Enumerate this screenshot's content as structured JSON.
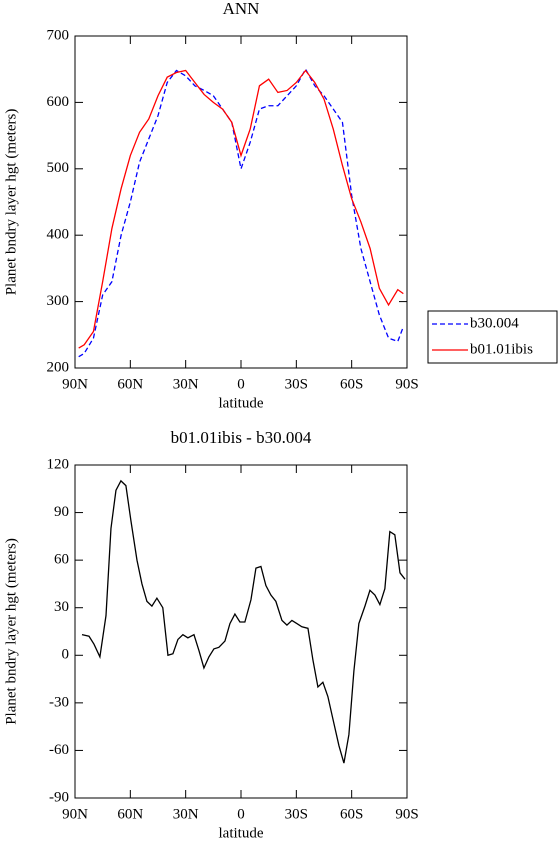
{
  "chart_data": [
    {
      "type": "line",
      "title": "ANN",
      "xlabel": "latitude",
      "ylabel": "Planet bndry layer hgt (meters)",
      "x": [
        88,
        85,
        80,
        75,
        70,
        65,
        60,
        55,
        50,
        45,
        40,
        35,
        30,
        25,
        20,
        15,
        10,
        5,
        0,
        -5,
        -10,
        -15,
        -20,
        -25,
        -30,
        -35,
        -40,
        -45,
        -50,
        -55,
        -60,
        -65,
        -70,
        -75,
        -80,
        -85,
        -88
      ],
      "series": [
        {
          "name": "b30.004",
          "color": "#0000ff",
          "dash": true,
          "values": [
            217,
            222,
            245,
            310,
            330,
            400,
            450,
            510,
            545,
            580,
            630,
            648,
            640,
            625,
            618,
            610,
            590,
            570,
            500,
            540,
            590,
            595,
            595,
            610,
            625,
            650,
            625,
            610,
            590,
            570,
            460,
            380,
            330,
            280,
            245,
            240,
            262
          ]
        },
        {
          "name": "b01.01ibis",
          "color": "#ff0000",
          "dash": false,
          "values": [
            230,
            235,
            255,
            330,
            410,
            470,
            520,
            555,
            575,
            610,
            638,
            645,
            648,
            630,
            612,
            600,
            590,
            570,
            520,
            560,
            625,
            635,
            615,
            618,
            630,
            648,
            630,
            605,
            560,
            505,
            455,
            420,
            380,
            320,
            295,
            318,
            312
          ]
        }
      ],
      "xlim": [
        90,
        -90
      ],
      "xticks": [
        {
          "value": 90,
          "label": "90N"
        },
        {
          "value": 60,
          "label": "60N"
        },
        {
          "value": 30,
          "label": "30N"
        },
        0,
        {
          "value": -30,
          "label": "30S"
        },
        {
          "value": -60,
          "label": "60S"
        },
        {
          "value": -90,
          "label": "90S"
        }
      ],
      "ylim": [
        200,
        700
      ],
      "yticks": [
        200,
        300,
        400,
        500,
        600,
        700
      ],
      "legend": "right"
    },
    {
      "type": "line",
      "title": "b01.01ibis - b30.004",
      "xlabel": "latitude",
      "ylabel": "Planet bndry layer hgt (meters)",
      "x": [
        86.2,
        82.4,
        79.7,
        76.5,
        73.2,
        70.5,
        67.8,
        65.1,
        62.4,
        59.7,
        56.4,
        53.7,
        51.0,
        48.3,
        45.6,
        42.4,
        39.6,
        36.9,
        34.2,
        31.5,
        28.8,
        25.5,
        22.8,
        20.1,
        17.4,
        14.7,
        12.0,
        8.7,
        6.0,
        3.3,
        0.6,
        -2.1,
        -5.4,
        -8.1,
        -10.8,
        -13.5,
        -16.2,
        -18.9,
        -22.2,
        -24.9,
        -27.6,
        -30.3,
        -33.0,
        -36.3,
        -39.0,
        -41.7,
        -44.4,
        -47.1,
        -49.8,
        -53.1,
        -55.8,
        -58.5,
        -61.2,
        -63.9,
        -67.2,
        -69.9,
        -72.6,
        -75.3,
        -78.0,
        -80.7,
        -83.4,
        -86.2,
        -88.9
      ],
      "values": [
        13,
        12,
        7,
        -1,
        25,
        80,
        104,
        110,
        107,
        85,
        60,
        45,
        34,
        31,
        36,
        30,
        0,
        1,
        10,
        13,
        11,
        13,
        3,
        -8,
        -1,
        4,
        5,
        9,
        20,
        26,
        21,
        21,
        35,
        55,
        56,
        44,
        38,
        34,
        22,
        19,
        22,
        20,
        18,
        17,
        -3,
        -20,
        -17,
        -26,
        -40,
        -57,
        -68,
        -50,
        -10,
        20,
        31,
        41,
        38,
        32,
        42,
        78,
        76,
        52,
        48
      ],
      "color": "#000000",
      "xlim": [
        90,
        -90
      ],
      "xticks": [
        {
          "value": 90,
          "label": "90N"
        },
        {
          "value": 60,
          "label": "60N"
        },
        {
          "value": 30,
          "label": "30N"
        },
        0,
        {
          "value": -30,
          "label": "30S"
        },
        {
          "value": -60,
          "label": "60S"
        },
        {
          "value": -90,
          "label": "90S"
        }
      ],
      "ylim": [
        -90,
        120
      ],
      "yticks": [
        -90,
        -60,
        -30,
        0,
        30,
        60,
        90,
        120
      ]
    }
  ]
}
